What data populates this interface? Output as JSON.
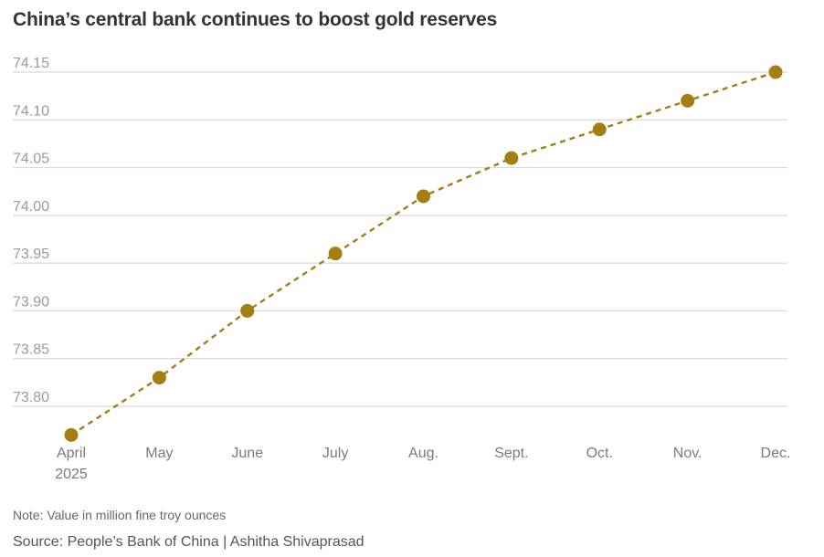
{
  "header": {
    "title": "China’s central bank continues to boost gold reserves"
  },
  "footer": {
    "note": "Note: Value in million fine troy ounces",
    "source": "Source: People’s Bank of China | Ashitha Shivaprasad"
  },
  "chart_data": {
    "type": "line",
    "title": "China’s central bank continues to boost gold reserves",
    "xlabel": "",
    "ylabel": "",
    "categories": [
      "April",
      "May",
      "June",
      "July",
      "Aug.",
      "Sept.",
      "Oct.",
      "Nov.",
      "Dec."
    ],
    "category_sublabels": [
      "2025",
      "",
      "",
      "",
      "",
      "",
      "",
      "",
      ""
    ],
    "series": [
      {
        "values": [
          73.77,
          73.83,
          73.9,
          73.96,
          74.02,
          74.06,
          74.09,
          74.12,
          74.15
        ]
      }
    ],
    "yticks": [
      "74.15",
      "74.10",
      "74.05",
      "74.00",
      "73.95",
      "73.90",
      "73.85",
      "73.80"
    ],
    "ylim": [
      73.77,
      74.15
    ],
    "grid": true,
    "line_style": "dashed",
    "markers": "circle",
    "colors": {
      "series": "#a37f12",
      "grid": "#d9d9d9"
    }
  }
}
